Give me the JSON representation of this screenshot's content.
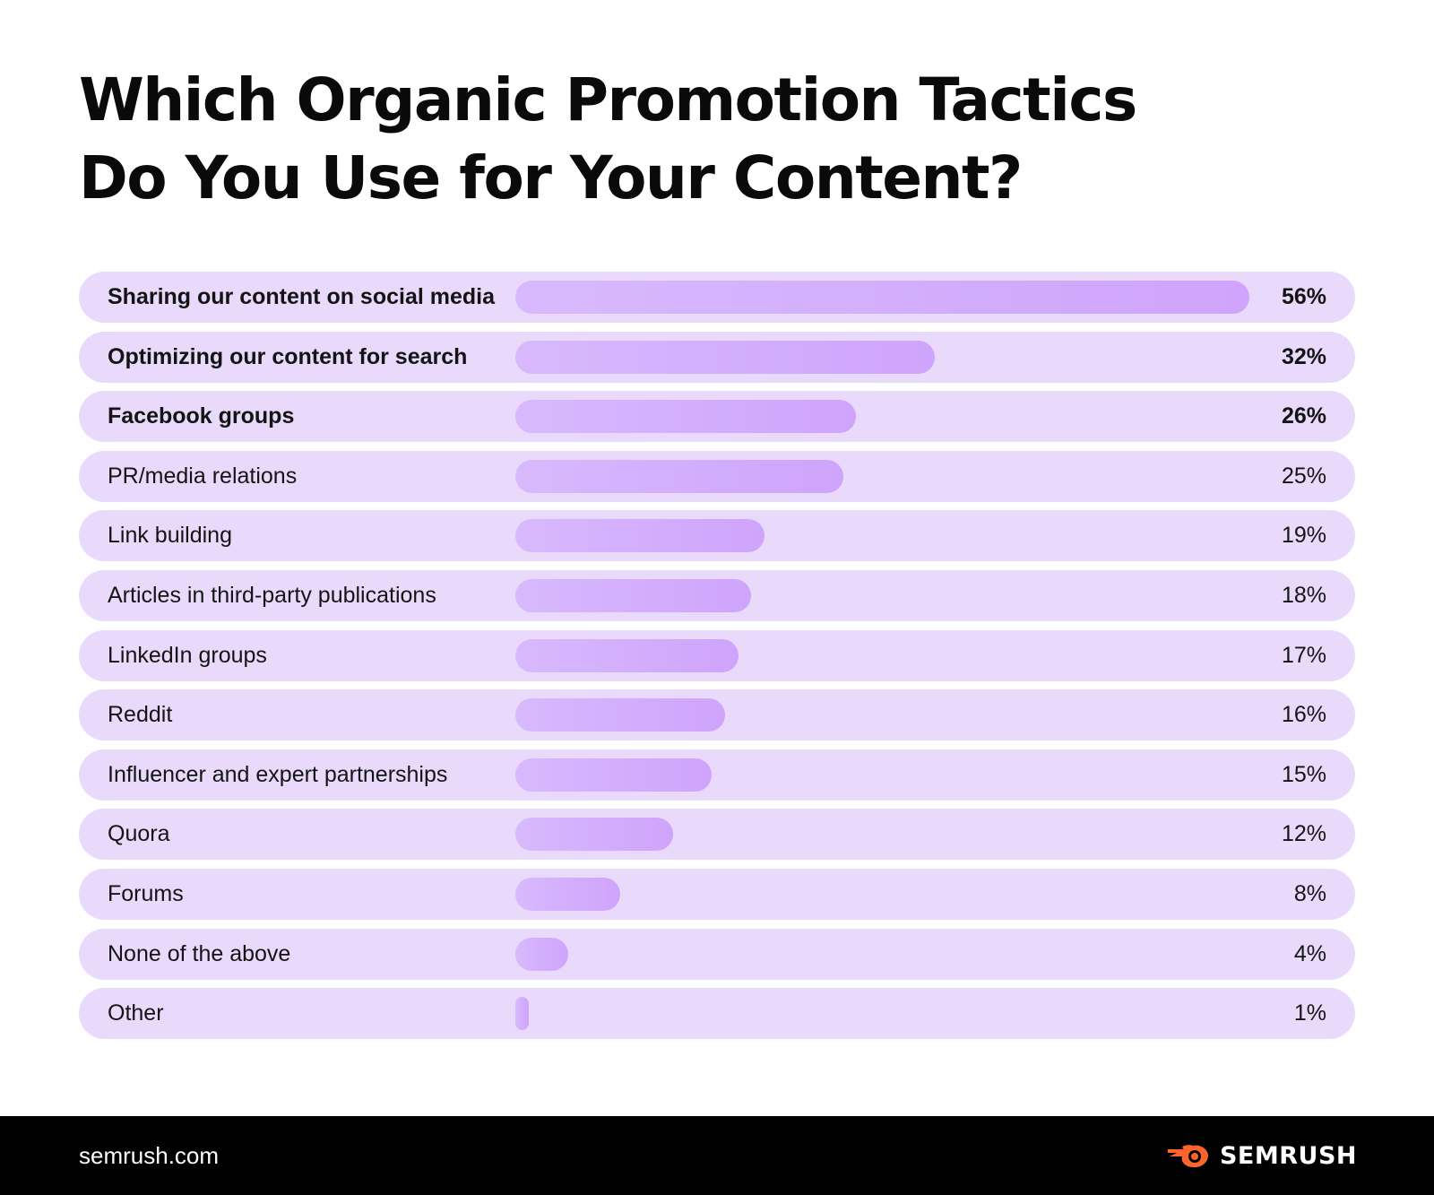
{
  "title_lines": [
    "Which Organic Promotion Tactics",
    "Do You Use for Your Content?"
  ],
  "chart_data": {
    "type": "bar",
    "orientation": "horizontal",
    "title": "Which Organic Promotion Tactics Do You Use for Your Content?",
    "categories": [
      "Sharing our content on social media",
      "Optimizing our content for search",
      "Facebook groups",
      "PR/media relations",
      "Link building",
      "Articles in third-party publications",
      "LinkedIn groups",
      "Reddit",
      "Influencer and expert partnerships",
      "Quora",
      "Forums",
      "None of the above",
      "Other"
    ],
    "values": [
      56,
      32,
      26,
      25,
      19,
      18,
      17,
      16,
      15,
      12,
      8,
      4,
      1
    ],
    "value_labels": [
      "56%",
      "32%",
      "26%",
      "25%",
      "19%",
      "18%",
      "17%",
      "16%",
      "15%",
      "12%",
      "8%",
      "4%",
      "1%"
    ],
    "bold_rows": 3,
    "colors": {
      "row_background": "#e9dafc",
      "bar_start": "#d8b9fd",
      "bar_end": "#cfa4fc"
    }
  },
  "footer": {
    "url": "semrush.com",
    "brand": "SEMRUSH",
    "brand_icon": "semrush-flame-logo-icon",
    "brand_color": "#ff642d"
  }
}
